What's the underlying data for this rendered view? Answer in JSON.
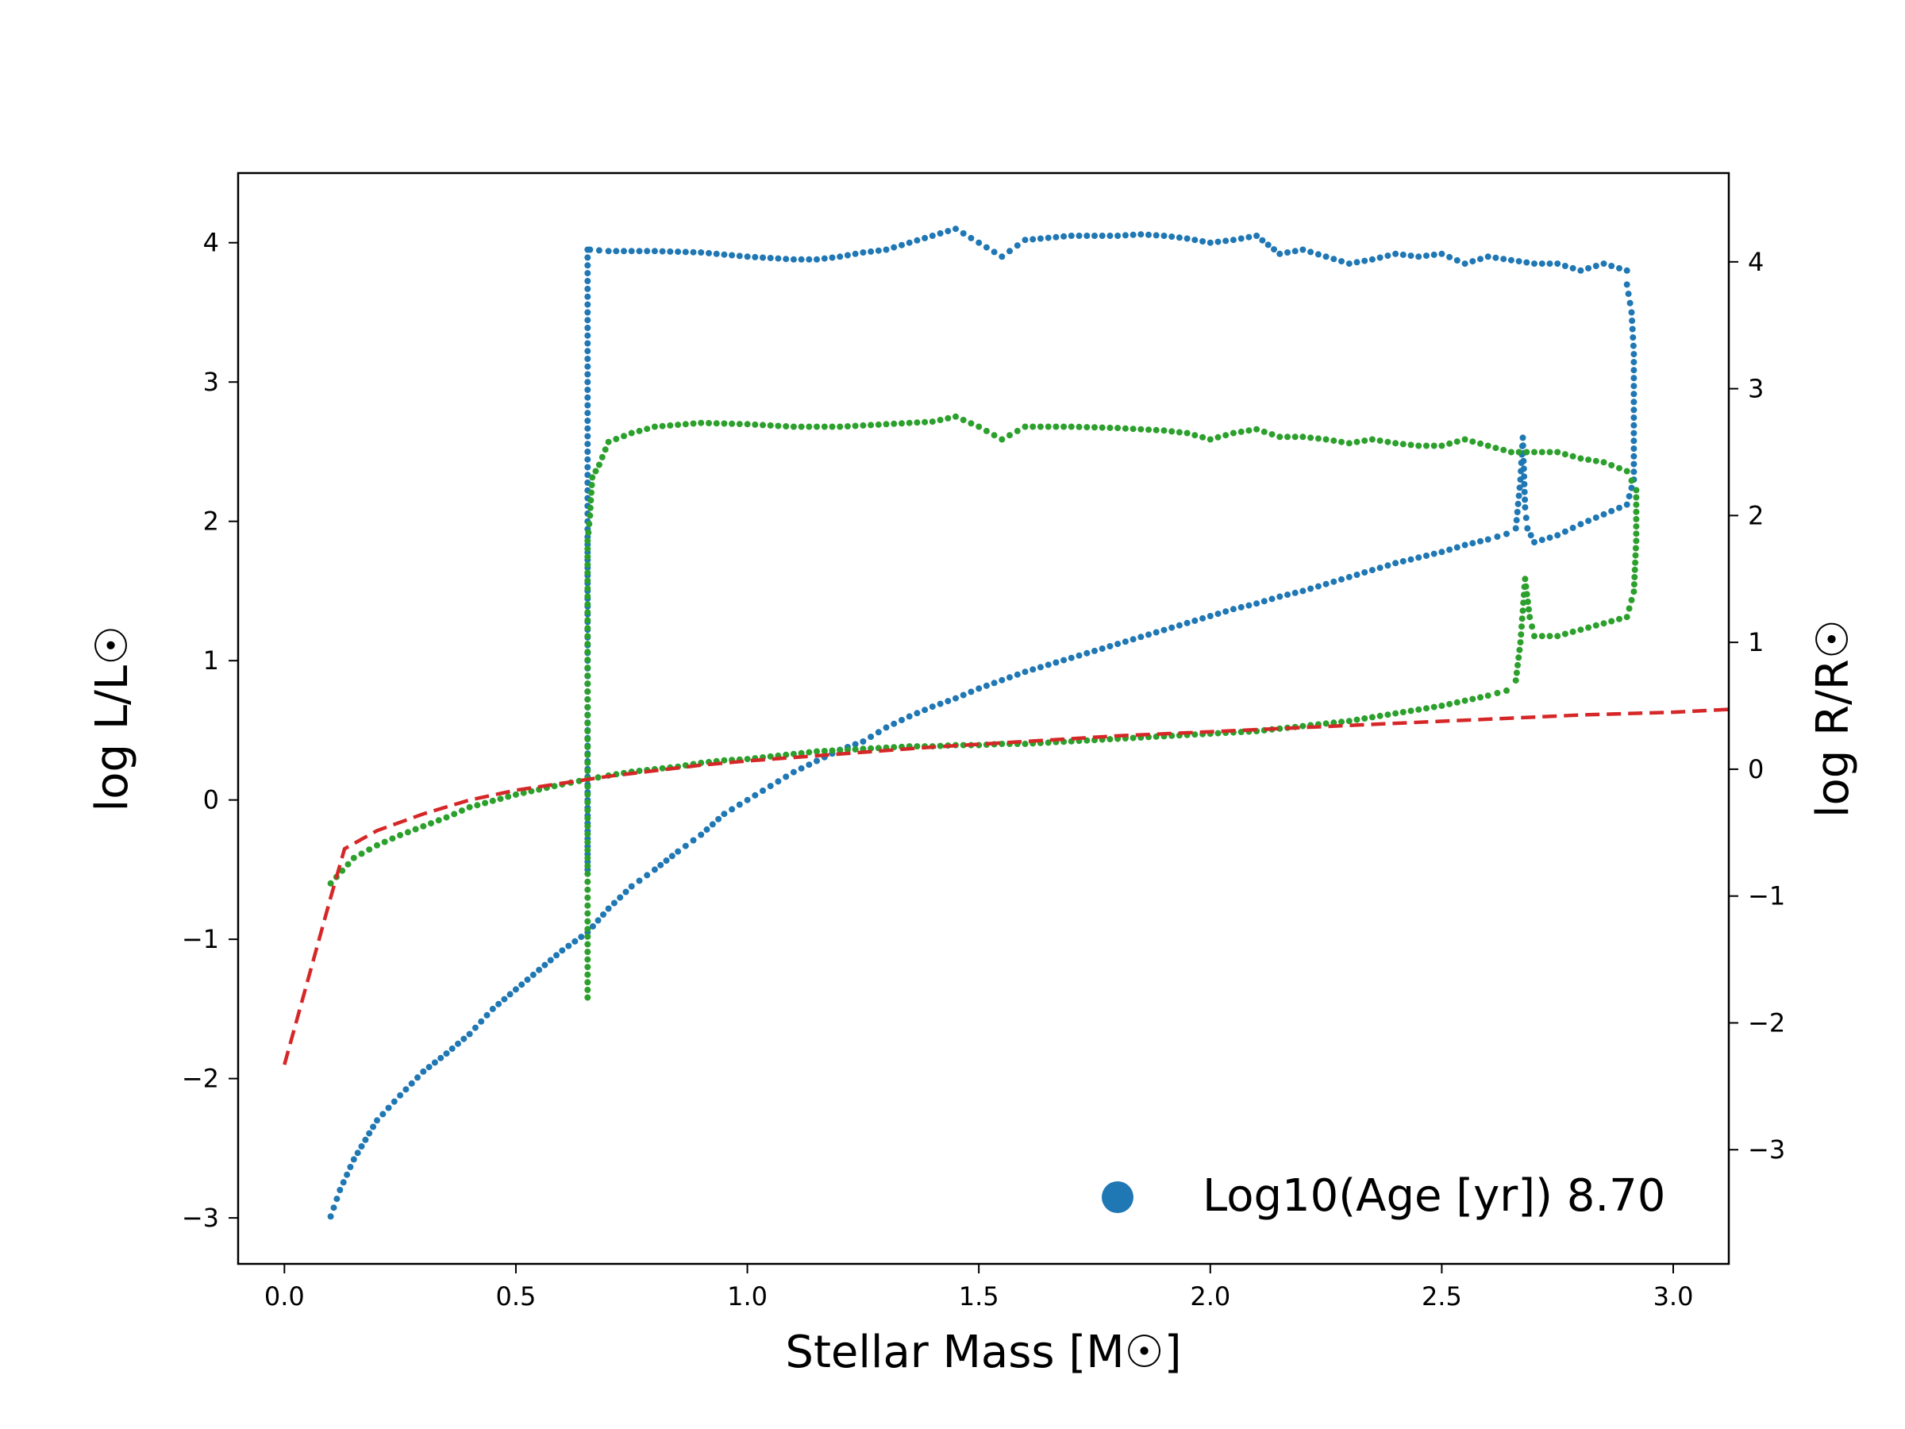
{
  "chart_data": {
    "type": "scatter",
    "xlabel": "Stellar Mass [M☉]",
    "ylabel_left": "log L/L☉",
    "ylabel_right": "log R/R☉",
    "xlim": [
      -0.1,
      3.12
    ],
    "ylim_left": [
      -3.33,
      4.5
    ],
    "ylim_right": [
      -3.9,
      4.7
    ],
    "x_ticks": [
      {
        "value": 0.0,
        "label": "0.0"
      },
      {
        "value": 0.5,
        "label": "0.5"
      },
      {
        "value": 1.0,
        "label": "1.0"
      },
      {
        "value": 1.5,
        "label": "1.5"
      },
      {
        "value": 2.0,
        "label": "2.0"
      },
      {
        "value": 2.5,
        "label": "2.5"
      },
      {
        "value": 3.0,
        "label": "3.0"
      }
    ],
    "y_ticks_left": [
      {
        "value": -3,
        "label": "−3"
      },
      {
        "value": -2,
        "label": "−2"
      },
      {
        "value": -1,
        "label": "−1"
      },
      {
        "value": 0,
        "label": "0"
      },
      {
        "value": 1,
        "label": "1"
      },
      {
        "value": 2,
        "label": "2"
      },
      {
        "value": 3,
        "label": "3"
      },
      {
        "value": 4,
        "label": "4"
      }
    ],
    "y_ticks_right": [
      {
        "value": -3,
        "label": "−3"
      },
      {
        "value": -2,
        "label": "−2"
      },
      {
        "value": -1,
        "label": "−1"
      },
      {
        "value": 0,
        "label": "0"
      },
      {
        "value": 1,
        "label": "1"
      },
      {
        "value": 2,
        "label": "2"
      },
      {
        "value": 3,
        "label": "3"
      },
      {
        "value": 4,
        "label": "4"
      }
    ],
    "legend": {
      "label": "Log10(Age [yr]) 8.70",
      "position": "lower-right",
      "color": "#1f77b4"
    },
    "series": [
      {
        "axis": "left",
        "style": "dots",
        "color": "#1f77b4",
        "points": [
          [
            0.1,
            -2.99
          ],
          [
            0.12,
            -2.8
          ],
          [
            0.15,
            -2.58
          ],
          [
            0.2,
            -2.3
          ],
          [
            0.25,
            -2.12
          ],
          [
            0.3,
            -1.95
          ],
          [
            0.35,
            -1.82
          ],
          [
            0.4,
            -1.68
          ],
          [
            0.45,
            -1.5
          ],
          [
            0.5,
            -1.36
          ],
          [
            0.55,
            -1.22
          ],
          [
            0.6,
            -1.08
          ],
          [
            0.655,
            -0.95
          ],
          [
            0.7,
            -0.78
          ],
          [
            0.75,
            -0.62
          ],
          [
            0.8,
            -0.5
          ],
          [
            0.85,
            -0.37
          ],
          [
            0.9,
            -0.25
          ],
          [
            0.95,
            -0.1
          ],
          [
            1.0,
            0.0
          ],
          [
            1.05,
            0.1
          ],
          [
            1.1,
            0.2
          ],
          [
            1.15,
            0.28
          ],
          [
            1.2,
            0.36
          ],
          [
            1.25,
            0.42
          ],
          [
            1.3,
            0.52
          ],
          [
            1.35,
            0.6
          ],
          [
            1.4,
            0.67
          ],
          [
            1.45,
            0.73
          ],
          [
            1.5,
            0.8
          ],
          [
            1.55,
            0.86
          ],
          [
            1.6,
            0.92
          ],
          [
            1.65,
            0.97
          ],
          [
            1.7,
            1.02
          ],
          [
            1.75,
            1.07
          ],
          [
            1.8,
            1.12
          ],
          [
            1.85,
            1.17
          ],
          [
            1.9,
            1.22
          ],
          [
            1.95,
            1.27
          ],
          [
            2.0,
            1.32
          ],
          [
            2.05,
            1.37
          ],
          [
            2.1,
            1.41
          ],
          [
            2.15,
            1.46
          ],
          [
            2.2,
            1.5
          ],
          [
            2.25,
            1.55
          ],
          [
            2.3,
            1.6
          ],
          [
            2.35,
            1.65
          ],
          [
            2.4,
            1.7
          ],
          [
            2.45,
            1.74
          ],
          [
            2.5,
            1.78
          ],
          [
            2.55,
            1.83
          ],
          [
            2.6,
            1.87
          ],
          [
            2.64,
            1.91
          ],
          [
            2.66,
            1.95
          ],
          [
            2.67,
            2.3
          ],
          [
            2.675,
            2.6
          ],
          [
            2.68,
            2.1
          ],
          [
            2.685,
            1.95
          ],
          [
            2.7,
            1.85
          ],
          [
            2.75,
            1.9
          ],
          [
            2.8,
            1.98
          ],
          [
            2.85,
            2.05
          ],
          [
            2.9,
            2.12
          ],
          [
            2.915,
            2.3
          ],
          [
            2.915,
            2.8
          ],
          [
            2.915,
            3.2
          ],
          [
            2.91,
            3.5
          ],
          [
            2.9,
            3.7
          ],
          [
            2.9,
            3.8
          ],
          [
            2.85,
            3.85
          ],
          [
            2.8,
            3.8
          ],
          [
            2.75,
            3.85
          ],
          [
            2.7,
            3.85
          ],
          [
            2.6,
            3.9
          ],
          [
            2.55,
            3.85
          ],
          [
            2.5,
            3.92
          ],
          [
            2.45,
            3.9
          ],
          [
            2.4,
            3.92
          ],
          [
            2.35,
            3.88
          ],
          [
            2.3,
            3.85
          ],
          [
            2.25,
            3.9
          ],
          [
            2.2,
            3.95
          ],
          [
            2.15,
            3.92
          ],
          [
            2.1,
            4.05
          ],
          [
            2.05,
            4.02
          ],
          [
            2.0,
            4.0
          ],
          [
            1.95,
            4.03
          ],
          [
            1.9,
            4.05
          ],
          [
            1.85,
            4.06
          ],
          [
            1.8,
            4.05
          ],
          [
            1.7,
            4.05
          ],
          [
            1.6,
            4.02
          ],
          [
            1.55,
            3.9
          ],
          [
            1.5,
            4.0
          ],
          [
            1.45,
            4.1
          ],
          [
            1.4,
            4.05
          ],
          [
            1.35,
            4.0
          ],
          [
            1.3,
            3.95
          ],
          [
            1.25,
            3.93
          ],
          [
            1.2,
            3.9
          ],
          [
            1.15,
            3.88
          ],
          [
            1.1,
            3.88
          ],
          [
            1.0,
            3.9
          ],
          [
            0.9,
            3.93
          ],
          [
            0.8,
            3.94
          ],
          [
            0.75,
            3.94
          ],
          [
            0.7,
            3.94
          ],
          [
            0.66,
            3.95
          ],
          [
            0.655,
            3.95
          ],
          [
            0.655,
            3.5
          ],
          [
            0.655,
            3.0
          ],
          [
            0.655,
            2.5
          ],
          [
            0.655,
            2.0
          ],
          [
            0.655,
            1.5
          ],
          [
            0.655,
            1.0
          ],
          [
            0.655,
            0.5
          ],
          [
            0.655,
            0.0
          ],
          [
            0.655,
            -0.5
          ]
        ]
      },
      {
        "axis": "right",
        "style": "dots",
        "color": "#2ca02c",
        "points": [
          [
            0.1,
            -0.9
          ],
          [
            0.15,
            -0.7
          ],
          [
            0.2,
            -0.6
          ],
          [
            0.25,
            -0.52
          ],
          [
            0.3,
            -0.45
          ],
          [
            0.35,
            -0.38
          ],
          [
            0.4,
            -0.3
          ],
          [
            0.45,
            -0.25
          ],
          [
            0.5,
            -0.2
          ],
          [
            0.55,
            -0.16
          ],
          [
            0.6,
            -0.12
          ],
          [
            0.655,
            -0.08
          ],
          [
            0.7,
            -0.05
          ],
          [
            0.75,
            -0.02
          ],
          [
            0.8,
            0.0
          ],
          [
            0.85,
            0.02
          ],
          [
            0.9,
            0.05
          ],
          [
            0.95,
            0.07
          ],
          [
            1.0,
            0.08
          ],
          [
            1.05,
            0.1
          ],
          [
            1.1,
            0.12
          ],
          [
            1.15,
            0.14
          ],
          [
            1.2,
            0.15
          ],
          [
            1.25,
            0.16
          ],
          [
            1.3,
            0.17
          ],
          [
            1.35,
            0.18
          ],
          [
            1.4,
            0.18
          ],
          [
            1.45,
            0.19
          ],
          [
            1.5,
            0.19
          ],
          [
            1.55,
            0.2
          ],
          [
            1.6,
            0.2
          ],
          [
            1.65,
            0.21
          ],
          [
            1.7,
            0.22
          ],
          [
            1.75,
            0.23
          ],
          [
            1.8,
            0.24
          ],
          [
            1.85,
            0.25
          ],
          [
            1.9,
            0.26
          ],
          [
            1.95,
            0.27
          ],
          [
            2.0,
            0.28
          ],
          [
            2.05,
            0.29
          ],
          [
            2.1,
            0.3
          ],
          [
            2.15,
            0.32
          ],
          [
            2.2,
            0.34
          ],
          [
            2.25,
            0.36
          ],
          [
            2.3,
            0.38
          ],
          [
            2.35,
            0.41
          ],
          [
            2.4,
            0.44
          ],
          [
            2.45,
            0.47
          ],
          [
            2.5,
            0.5
          ],
          [
            2.55,
            0.54
          ],
          [
            2.6,
            0.58
          ],
          [
            2.64,
            0.62
          ],
          [
            2.66,
            0.7
          ],
          [
            2.67,
            1.0
          ],
          [
            2.68,
            1.5
          ],
          [
            2.69,
            1.2
          ],
          [
            2.7,
            1.05
          ],
          [
            2.75,
            1.05
          ],
          [
            2.8,
            1.1
          ],
          [
            2.85,
            1.15
          ],
          [
            2.9,
            1.2
          ],
          [
            2.915,
            1.4
          ],
          [
            2.92,
            1.8
          ],
          [
            2.92,
            2.2
          ],
          [
            2.9,
            2.35
          ],
          [
            2.85,
            2.42
          ],
          [
            2.8,
            2.45
          ],
          [
            2.75,
            2.5
          ],
          [
            2.7,
            2.5
          ],
          [
            2.65,
            2.5
          ],
          [
            2.6,
            2.55
          ],
          [
            2.55,
            2.6
          ],
          [
            2.5,
            2.55
          ],
          [
            2.45,
            2.55
          ],
          [
            2.4,
            2.57
          ],
          [
            2.35,
            2.6
          ],
          [
            2.3,
            2.57
          ],
          [
            2.25,
            2.6
          ],
          [
            2.2,
            2.62
          ],
          [
            2.15,
            2.62
          ],
          [
            2.1,
            2.68
          ],
          [
            2.05,
            2.65
          ],
          [
            2.0,
            2.6
          ],
          [
            1.95,
            2.65
          ],
          [
            1.9,
            2.67
          ],
          [
            1.85,
            2.68
          ],
          [
            1.8,
            2.69
          ],
          [
            1.7,
            2.7
          ],
          [
            1.6,
            2.7
          ],
          [
            1.55,
            2.6
          ],
          [
            1.5,
            2.7
          ],
          [
            1.45,
            2.78
          ],
          [
            1.4,
            2.74
          ],
          [
            1.3,
            2.72
          ],
          [
            1.2,
            2.7
          ],
          [
            1.1,
            2.7
          ],
          [
            1.0,
            2.72
          ],
          [
            0.9,
            2.73
          ],
          [
            0.8,
            2.7
          ],
          [
            0.75,
            2.65
          ],
          [
            0.7,
            2.58
          ],
          [
            0.68,
            2.4
          ],
          [
            0.665,
            2.3
          ],
          [
            0.66,
            2.0
          ],
          [
            0.655,
            1.8
          ],
          [
            0.655,
            1.3
          ],
          [
            0.655,
            0.8
          ],
          [
            0.655,
            0.3
          ],
          [
            0.655,
            -0.2
          ],
          [
            0.655,
            -0.7
          ],
          [
            0.655,
            -1.2
          ],
          [
            0.655,
            -1.8
          ]
        ]
      },
      {
        "axis": "left",
        "style": "dashed",
        "color": "#d62728",
        "points": [
          [
            0.0,
            -1.9
          ],
          [
            0.05,
            -1.3
          ],
          [
            0.1,
            -0.7
          ],
          [
            0.13,
            -0.35
          ],
          [
            0.2,
            -0.22
          ],
          [
            0.3,
            -0.1
          ],
          [
            0.4,
            0.0
          ],
          [
            0.5,
            0.07
          ],
          [
            0.6,
            0.12
          ],
          [
            0.7,
            0.17
          ],
          [
            0.8,
            0.21
          ],
          [
            0.9,
            0.25
          ],
          [
            1.0,
            0.28
          ],
          [
            1.2,
            0.33
          ],
          [
            1.4,
            0.38
          ],
          [
            1.6,
            0.42
          ],
          [
            1.8,
            0.46
          ],
          [
            2.0,
            0.49
          ],
          [
            2.2,
            0.52
          ],
          [
            2.4,
            0.55
          ],
          [
            2.6,
            0.58
          ],
          [
            2.8,
            0.61
          ],
          [
            3.0,
            0.63
          ],
          [
            3.12,
            0.65
          ]
        ]
      }
    ]
  }
}
